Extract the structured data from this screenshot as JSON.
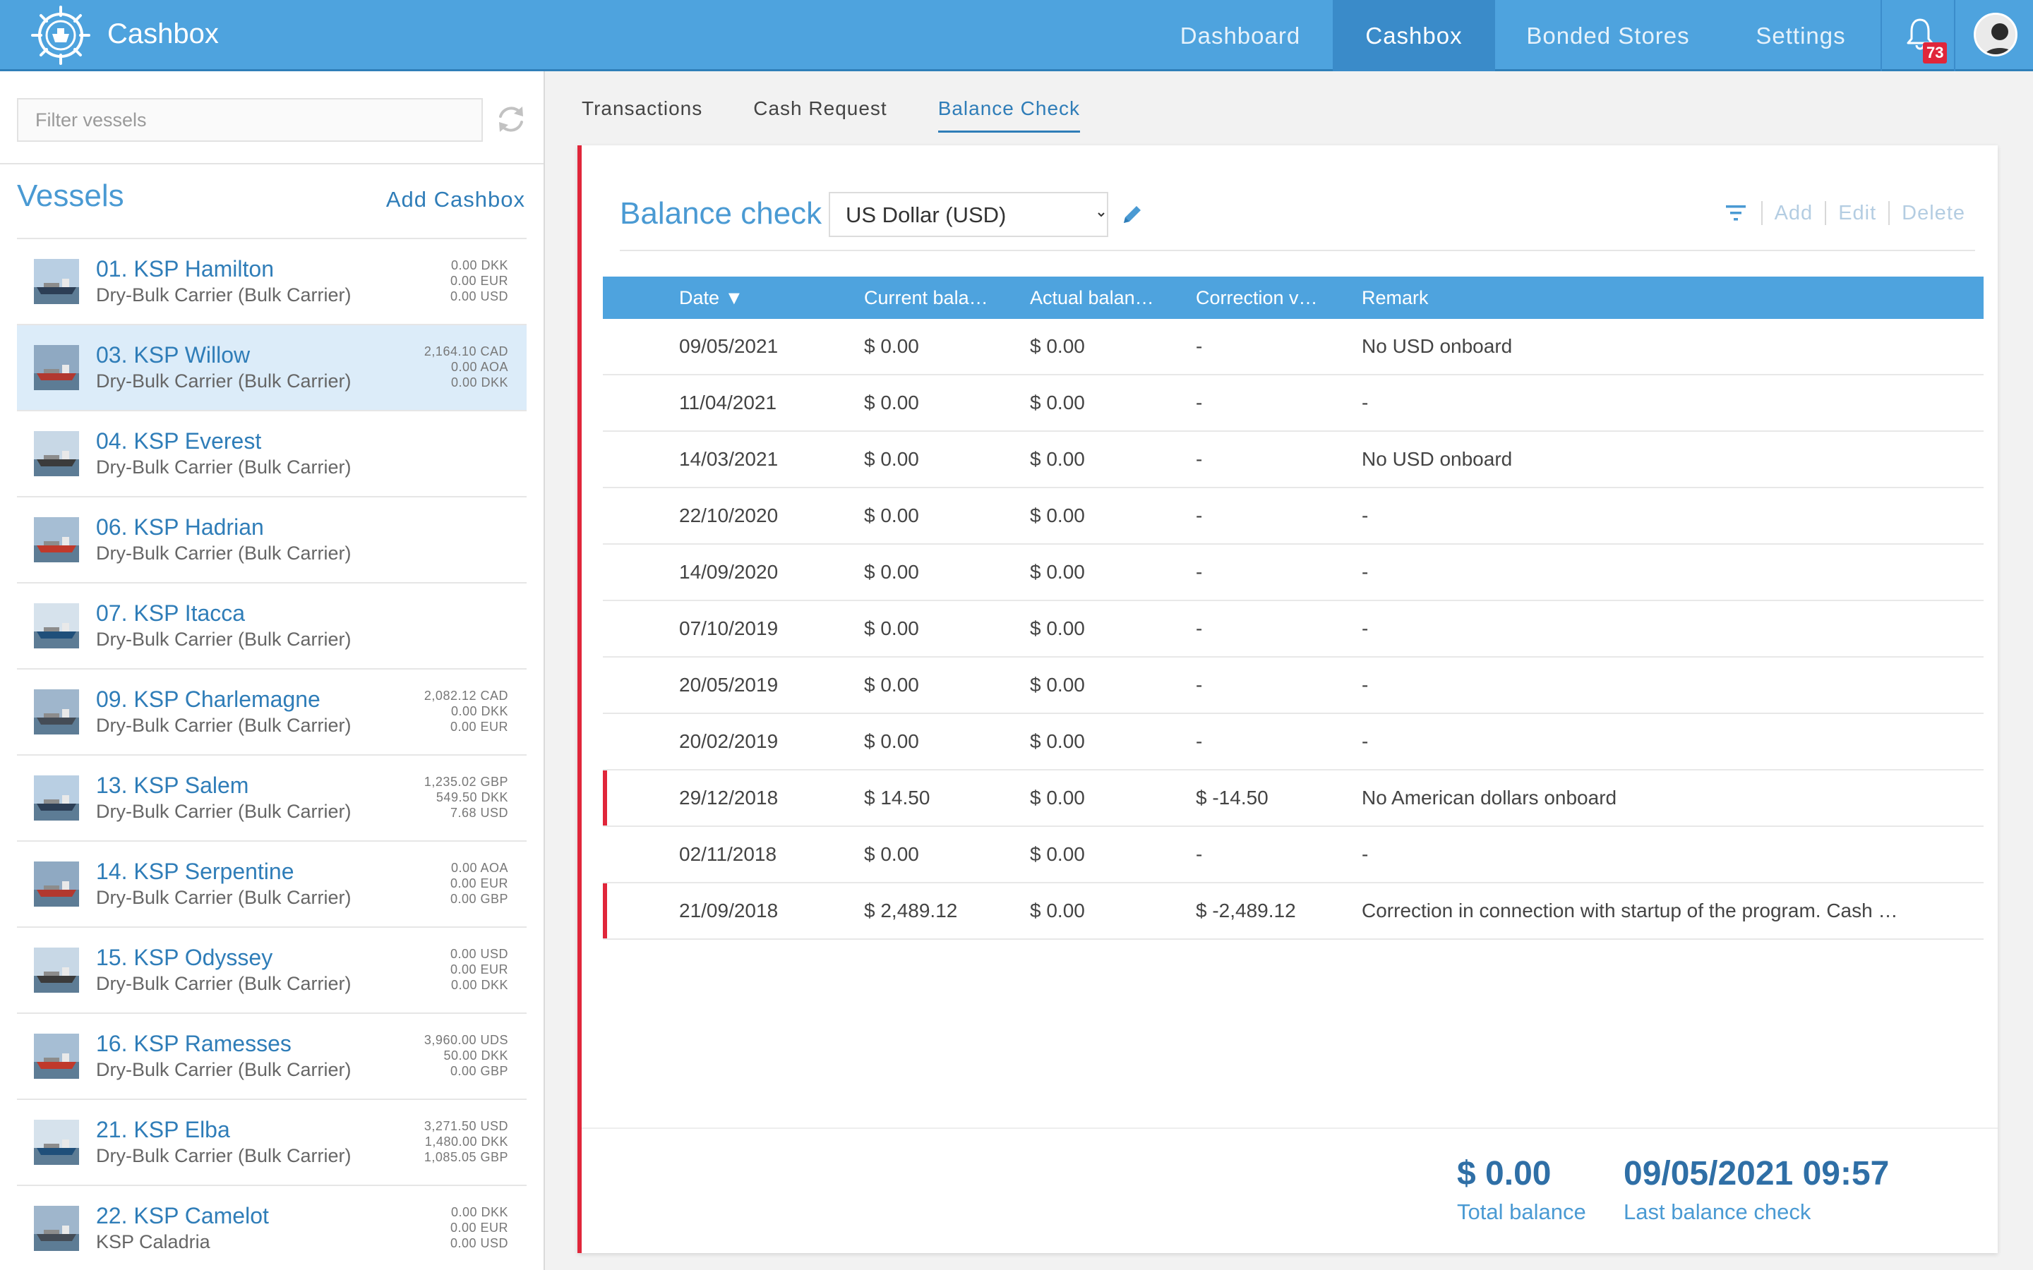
{
  "app": {
    "title": "Cashbox"
  },
  "nav": {
    "items": [
      {
        "label": "Dashboard"
      },
      {
        "label": "Cashbox"
      },
      {
        "label": "Bonded Stores"
      },
      {
        "label": "Settings"
      }
    ],
    "notifications_count": "73"
  },
  "sidebar": {
    "filter_placeholder": "Filter vessels",
    "title": "Vessels",
    "add_label": "Add Cashbox",
    "vessels": [
      {
        "name": "01. KSP Hamilton",
        "type": "Dry-Bulk Carrier (Bulk Carrier)",
        "balances": [
          "0.00 DKK",
          "0.00 EUR",
          "0.00 USD"
        ]
      },
      {
        "name": "03. KSP Willow",
        "type": "Dry-Bulk Carrier (Bulk Carrier)",
        "balances": [
          "2,164.10 CAD",
          "0.00 AOA",
          "0.00 DKK"
        ]
      },
      {
        "name": "04. KSP Everest",
        "type": "Dry-Bulk Carrier (Bulk Carrier)",
        "balances": []
      },
      {
        "name": "06. KSP Hadrian",
        "type": "Dry-Bulk Carrier (Bulk Carrier)",
        "balances": []
      },
      {
        "name": "07. KSP Itacca",
        "type": "Dry-Bulk Carrier (Bulk Carrier)",
        "balances": []
      },
      {
        "name": "09. KSP Charlemagne",
        "type": "Dry-Bulk Carrier (Bulk Carrier)",
        "balances": [
          "2,082.12 CAD",
          "0.00 DKK",
          "0.00 EUR"
        ]
      },
      {
        "name": "13. KSP Salem",
        "type": "Dry-Bulk Carrier (Bulk Carrier)",
        "balances": [
          "1,235.02 GBP",
          "549.50 DKK",
          "7.68 USD"
        ]
      },
      {
        "name": "14. KSP Serpentine",
        "type": "Dry-Bulk Carrier (Bulk Carrier)",
        "balances": [
          "0.00 AOA",
          "0.00 EUR",
          "0.00 GBP"
        ]
      },
      {
        "name": "15. KSP Odyssey",
        "type": "Dry-Bulk Carrier (Bulk Carrier)",
        "balances": [
          "0.00 USD",
          "0.00 EUR",
          "0.00 DKK"
        ]
      },
      {
        "name": "16. KSP Ramesses",
        "type": "Dry-Bulk Carrier (Bulk Carrier)",
        "balances": [
          "3,960.00 UDS",
          "50.00 DKK",
          "0.00 GBP"
        ]
      },
      {
        "name": "21. KSP Elba",
        "type": "Dry-Bulk Carrier (Bulk Carrier)",
        "balances": [
          "3,271.50 USD",
          "1,480.00 DKK",
          "1,085.05 GBP"
        ]
      },
      {
        "name": "22. KSP Camelot",
        "type": "KSP Caladria",
        "balances": [
          "0.00 DKK",
          "0.00 EUR",
          "0.00 USD"
        ]
      }
    ]
  },
  "tabs": [
    {
      "label": "Transactions"
    },
    {
      "label": "Cash Request"
    },
    {
      "label": "Balance Check"
    }
  ],
  "panel": {
    "title": "Balance check",
    "currency_selected": "US Dollar (USD)",
    "toolbar": {
      "add": "Add",
      "edit": "Edit",
      "delete": "Delete"
    },
    "columns": [
      "Date ▼",
      "Current bala…",
      "Actual balan…",
      "Correction v…",
      "Remark"
    ],
    "rows": [
      {
        "date": "09/05/2021",
        "current": "$ 0.00",
        "actual": "$ 0.00",
        "correction": "-",
        "remark": "No USD onboard",
        "flagged": false
      },
      {
        "date": "11/04/2021",
        "current": "$ 0.00",
        "actual": "$ 0.00",
        "correction": "-",
        "remark": "-",
        "flagged": false
      },
      {
        "date": "14/03/2021",
        "current": "$ 0.00",
        "actual": "$ 0.00",
        "correction": "-",
        "remark": "No USD onboard",
        "flagged": false
      },
      {
        "date": "22/10/2020",
        "current": "$ 0.00",
        "actual": "$ 0.00",
        "correction": "-",
        "remark": "-",
        "flagged": false
      },
      {
        "date": "14/09/2020",
        "current": "$ 0.00",
        "actual": "$ 0.00",
        "correction": "-",
        "remark": "-",
        "flagged": false
      },
      {
        "date": "07/10/2019",
        "current": "$ 0.00",
        "actual": "$ 0.00",
        "correction": "-",
        "remark": "-",
        "flagged": false
      },
      {
        "date": "20/05/2019",
        "current": "$ 0.00",
        "actual": "$ 0.00",
        "correction": "-",
        "remark": "-",
        "flagged": false
      },
      {
        "date": "20/02/2019",
        "current": "$ 0.00",
        "actual": "$ 0.00",
        "correction": "-",
        "remark": "-",
        "flagged": false
      },
      {
        "date": "29/12/2018",
        "current": "$ 14.50",
        "actual": "$ 0.00",
        "correction": "$ -14.50",
        "remark": "No American dollars onboard",
        "flagged": true
      },
      {
        "date": "02/11/2018",
        "current": "$ 0.00",
        "actual": "$ 0.00",
        "correction": "-",
        "remark": "-",
        "flagged": false
      },
      {
        "date": "21/09/2018",
        "current": "$ 2,489.12",
        "actual": "$ 0.00",
        "correction": "$ -2,489.12",
        "remark": "Correction in connection with startup of the program. Cash …",
        "flagged": true
      }
    ],
    "footer": {
      "total_value": "$ 0.00",
      "total_label": "Total balance",
      "last_value": "09/05/2021 09:57",
      "last_label": "Last balance check"
    }
  },
  "colors": {
    "topbar": "#4ea3de",
    "accent": "#2f7db8",
    "flag": "#e0263a",
    "selected_row": "#dcecf9"
  }
}
